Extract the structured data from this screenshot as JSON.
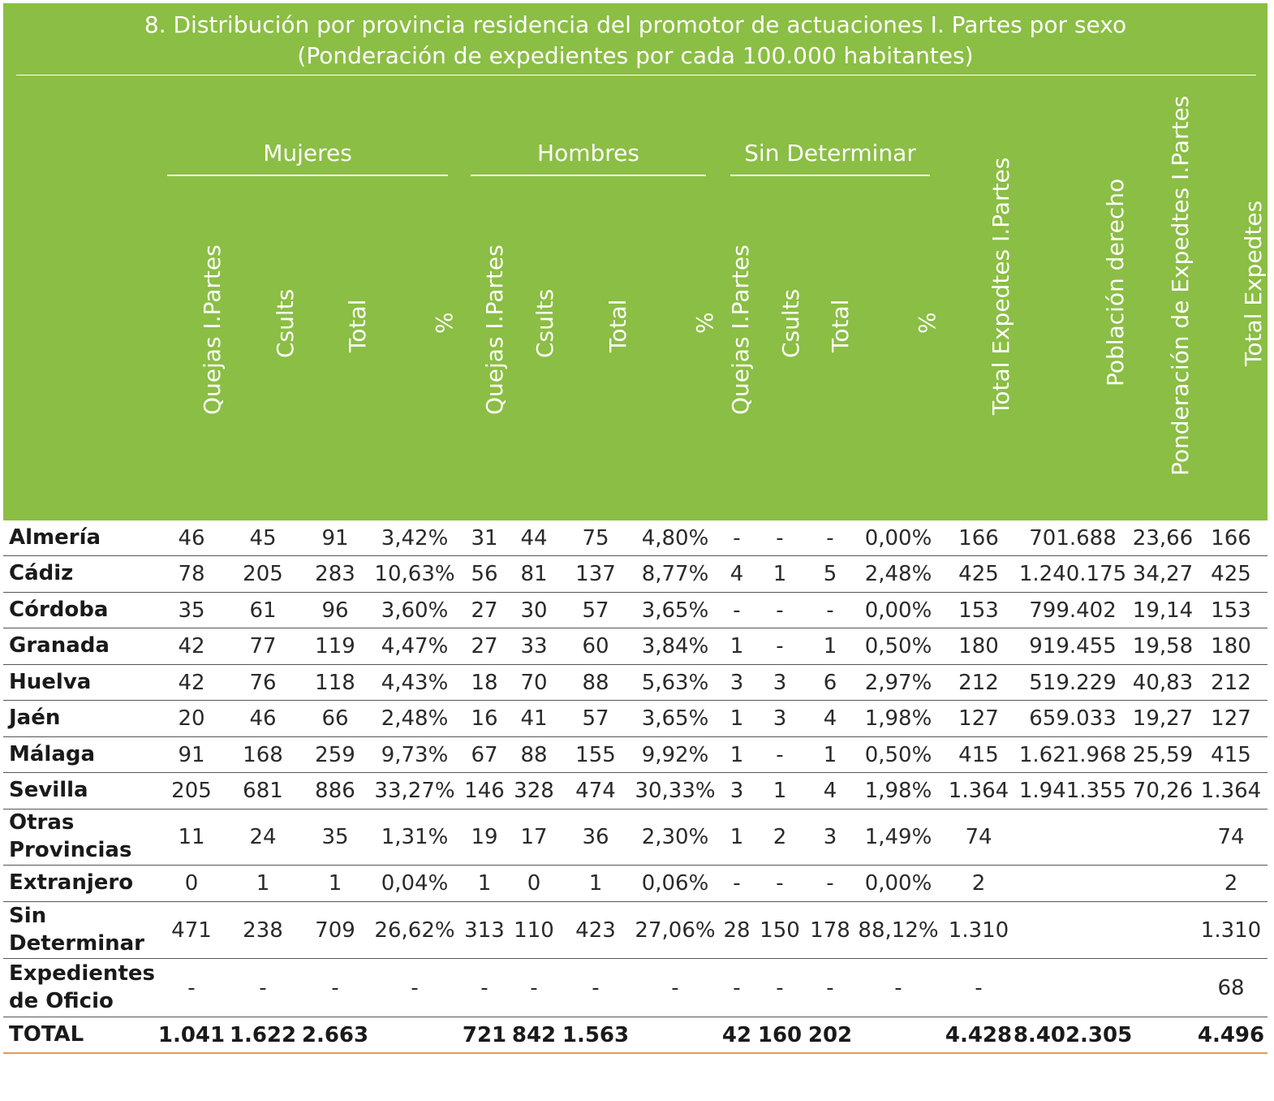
{
  "title": {
    "line1": "8. Distribución por provincia residencia del promotor de actuaciones I. Partes por sexo",
    "line2": "(Ponderación de expedientes por cada 100.000 habitantes)"
  },
  "groups": [
    "Mujeres",
    "Hombres",
    "Sin Determinar"
  ],
  "column_headers": [
    "Quejas I.Partes",
    "Csults",
    "Total",
    "%",
    "Quejas I.Partes",
    "Csults",
    "Total",
    "%",
    "Quejas I.Partes",
    "Csults",
    "Total",
    "%",
    "Total  Expedtes I.Partes",
    "Población derecho",
    "Ponderación de Expedtes I.Partes",
    "Total  Expedtes"
  ],
  "rows": [
    {
      "name": "Almería",
      "values": [
        "46",
        "45",
        "91",
        "3,42%",
        "31",
        "44",
        "75",
        "4,80%",
        "-",
        "-",
        "-",
        "0,00%",
        "166",
        "701.688",
        "23,66",
        "166"
      ]
    },
    {
      "name": "Cádiz",
      "values": [
        "78",
        "205",
        "283",
        "10,63%",
        "56",
        "81",
        "137",
        "8,77%",
        "4",
        "1",
        "5",
        "2,48%",
        "425",
        "1.240.175",
        "34,27",
        "425"
      ]
    },
    {
      "name": "Córdoba",
      "values": [
        "35",
        "61",
        "96",
        "3,60%",
        "27",
        "30",
        "57",
        "3,65%",
        "-",
        "-",
        "-",
        "0,00%",
        "153",
        "799.402",
        "19,14",
        "153"
      ]
    },
    {
      "name": "Granada",
      "values": [
        "42",
        "77",
        "119",
        "4,47%",
        "27",
        "33",
        "60",
        "3,84%",
        "1",
        "-",
        "1",
        "0,50%",
        "180",
        "919.455",
        "19,58",
        "180"
      ]
    },
    {
      "name": "Huelva",
      "values": [
        "42",
        "76",
        "118",
        "4,43%",
        "18",
        "70",
        "88",
        "5,63%",
        "3",
        "3",
        "6",
        "2,97%",
        "212",
        "519.229",
        "40,83",
        "212"
      ]
    },
    {
      "name": "Jaén",
      "values": [
        "20",
        "46",
        "66",
        "2,48%",
        "16",
        "41",
        "57",
        "3,65%",
        "1",
        "3",
        "4",
        "1,98%",
        "127",
        "659.033",
        "19,27",
        "127"
      ]
    },
    {
      "name": "Málaga",
      "values": [
        "91",
        "168",
        "259",
        "9,73%",
        "67",
        "88",
        "155",
        "9,92%",
        "1",
        "-",
        "1",
        "0,50%",
        "415",
        "1.621.968",
        "25,59",
        "415"
      ]
    },
    {
      "name": "Sevilla",
      "values": [
        "205",
        "681",
        "886",
        "33,27%",
        "146",
        "328",
        "474",
        "30,33%",
        "3",
        "1",
        "4",
        "1,98%",
        "1.364",
        "1.941.355",
        "70,26",
        "1.364"
      ]
    },
    {
      "name": "Otras Provincias",
      "values": [
        "11",
        "24",
        "35",
        "1,31%",
        "19",
        "17",
        "36",
        "2,30%",
        "1",
        "2",
        "3",
        "1,49%",
        "74",
        "",
        "",
        "74"
      ]
    },
    {
      "name": "Extranjero",
      "values": [
        "0",
        "1",
        "1",
        "0,04%",
        "1",
        "0",
        "1",
        "0,06%",
        "-",
        "-",
        "-",
        "0,00%",
        "2",
        "",
        "",
        "2"
      ]
    },
    {
      "name": "Sin Determinar",
      "values": [
        "471",
        "238",
        "709",
        "26,62%",
        "313",
        "110",
        "423",
        "27,06%",
        "28",
        "150",
        "178",
        "88,12%",
        "1.310",
        "",
        "",
        "1.310"
      ]
    },
    {
      "name": "Expedientes de Oficio",
      "values": [
        "-",
        "-",
        "-",
        "-",
        "-",
        "-",
        "-",
        "-",
        "-",
        "-",
        "-",
        "-",
        "-",
        "",
        "",
        "68"
      ]
    },
    {
      "name": "TOTAL",
      "values": [
        "1.041",
        "1.622",
        "2.663",
        "",
        "721",
        "842",
        "1.563",
        "",
        "42",
        "160",
        "202",
        "",
        "4.428",
        "8.402.305",
        "",
        "4.496"
      ]
    }
  ]
}
